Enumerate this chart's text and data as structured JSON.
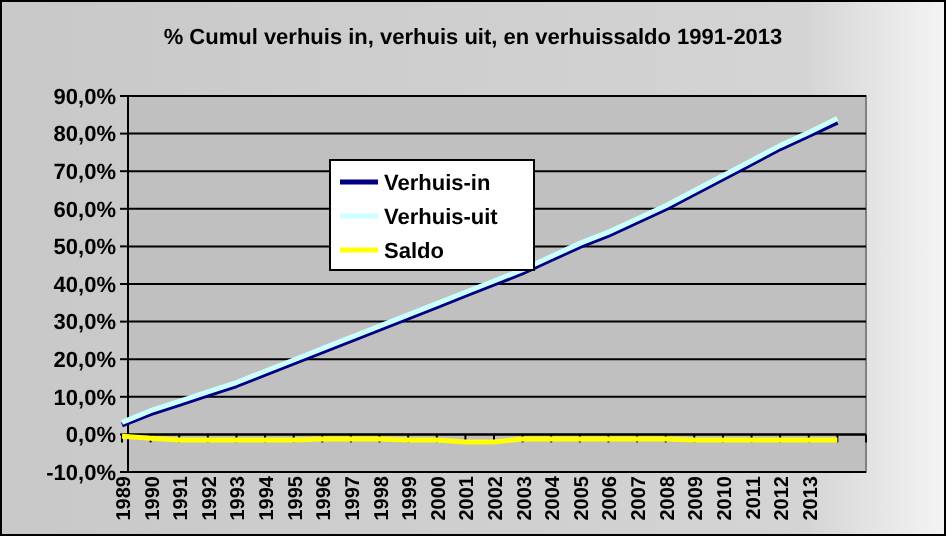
{
  "chart_data": {
    "type": "line",
    "title": "% Cumul verhuis in, verhuis uit, en verhuissaldo 1991-2013",
    "categories": [
      "1989",
      "1990",
      "1991",
      "1992",
      "1993",
      "1994",
      "1995",
      "1996",
      "1997",
      "1998",
      "1999",
      "2000",
      "2001",
      "2002",
      "2003",
      "2004",
      "2005",
      "2006",
      "2007",
      "2008",
      "2009",
      "2010",
      "2011",
      "2012",
      "2013",
      null,
      null
    ],
    "series": [
      {
        "name": "Verhuis-in",
        "color": "#000080",
        "values": [
          2.5,
          5.5,
          8,
          10.5,
          13,
          16,
          19,
          22,
          25,
          28,
          31,
          34,
          37,
          40,
          43,
          46.5,
          50,
          53,
          56.5,
          60,
          64,
          68,
          72,
          76,
          79.5,
          83,
          null
        ]
      },
      {
        "name": "Verhuis-uit",
        "color": "#ccffff",
        "values": [
          3.2,
          6.3,
          8.8,
          11.3,
          13.8,
          16.8,
          19.8,
          22.8,
          25.8,
          28.8,
          31.8,
          34.8,
          37.8,
          40.8,
          43.8,
          47.3,
          50.8,
          53.8,
          57.3,
          60.8,
          64.8,
          68.8,
          72.8,
          76.8,
          80.3,
          84,
          null
        ]
      },
      {
        "name": "Saldo",
        "color": "#ffff00",
        "values": [
          -0.5,
          -1,
          -1.5,
          -1.5,
          -1.5,
          -1.5,
          -1.5,
          -1.2,
          -1.2,
          -1.2,
          -1.5,
          -1.5,
          -2,
          -2,
          -1.2,
          -1.2,
          -1.2,
          -1.2,
          -1.2,
          -1.2,
          -1.5,
          -1.5,
          -1.5,
          -1.5,
          -1.5,
          -1.5,
          null
        ]
      }
    ],
    "ylim": [
      -10,
      90
    ],
    "yticks": [
      {
        "value": -10,
        "label": "-10,0%"
      },
      {
        "value": 0,
        "label": "0,0%"
      },
      {
        "value": 10,
        "label": "10,0%"
      },
      {
        "value": 20,
        "label": "20,0%"
      },
      {
        "value": 30,
        "label": "30,0%"
      },
      {
        "value": 40,
        "label": "40,0%"
      },
      {
        "value": 50,
        "label": "50,0%"
      },
      {
        "value": 60,
        "label": "60,0%"
      },
      {
        "value": 70,
        "label": "70,0%"
      },
      {
        "value": 80,
        "label": "80,0%"
      },
      {
        "value": 90,
        "label": "90,0%"
      }
    ],
    "grid": "y",
    "legend": "top left",
    "marker": "none",
    "line_style": "solid"
  }
}
